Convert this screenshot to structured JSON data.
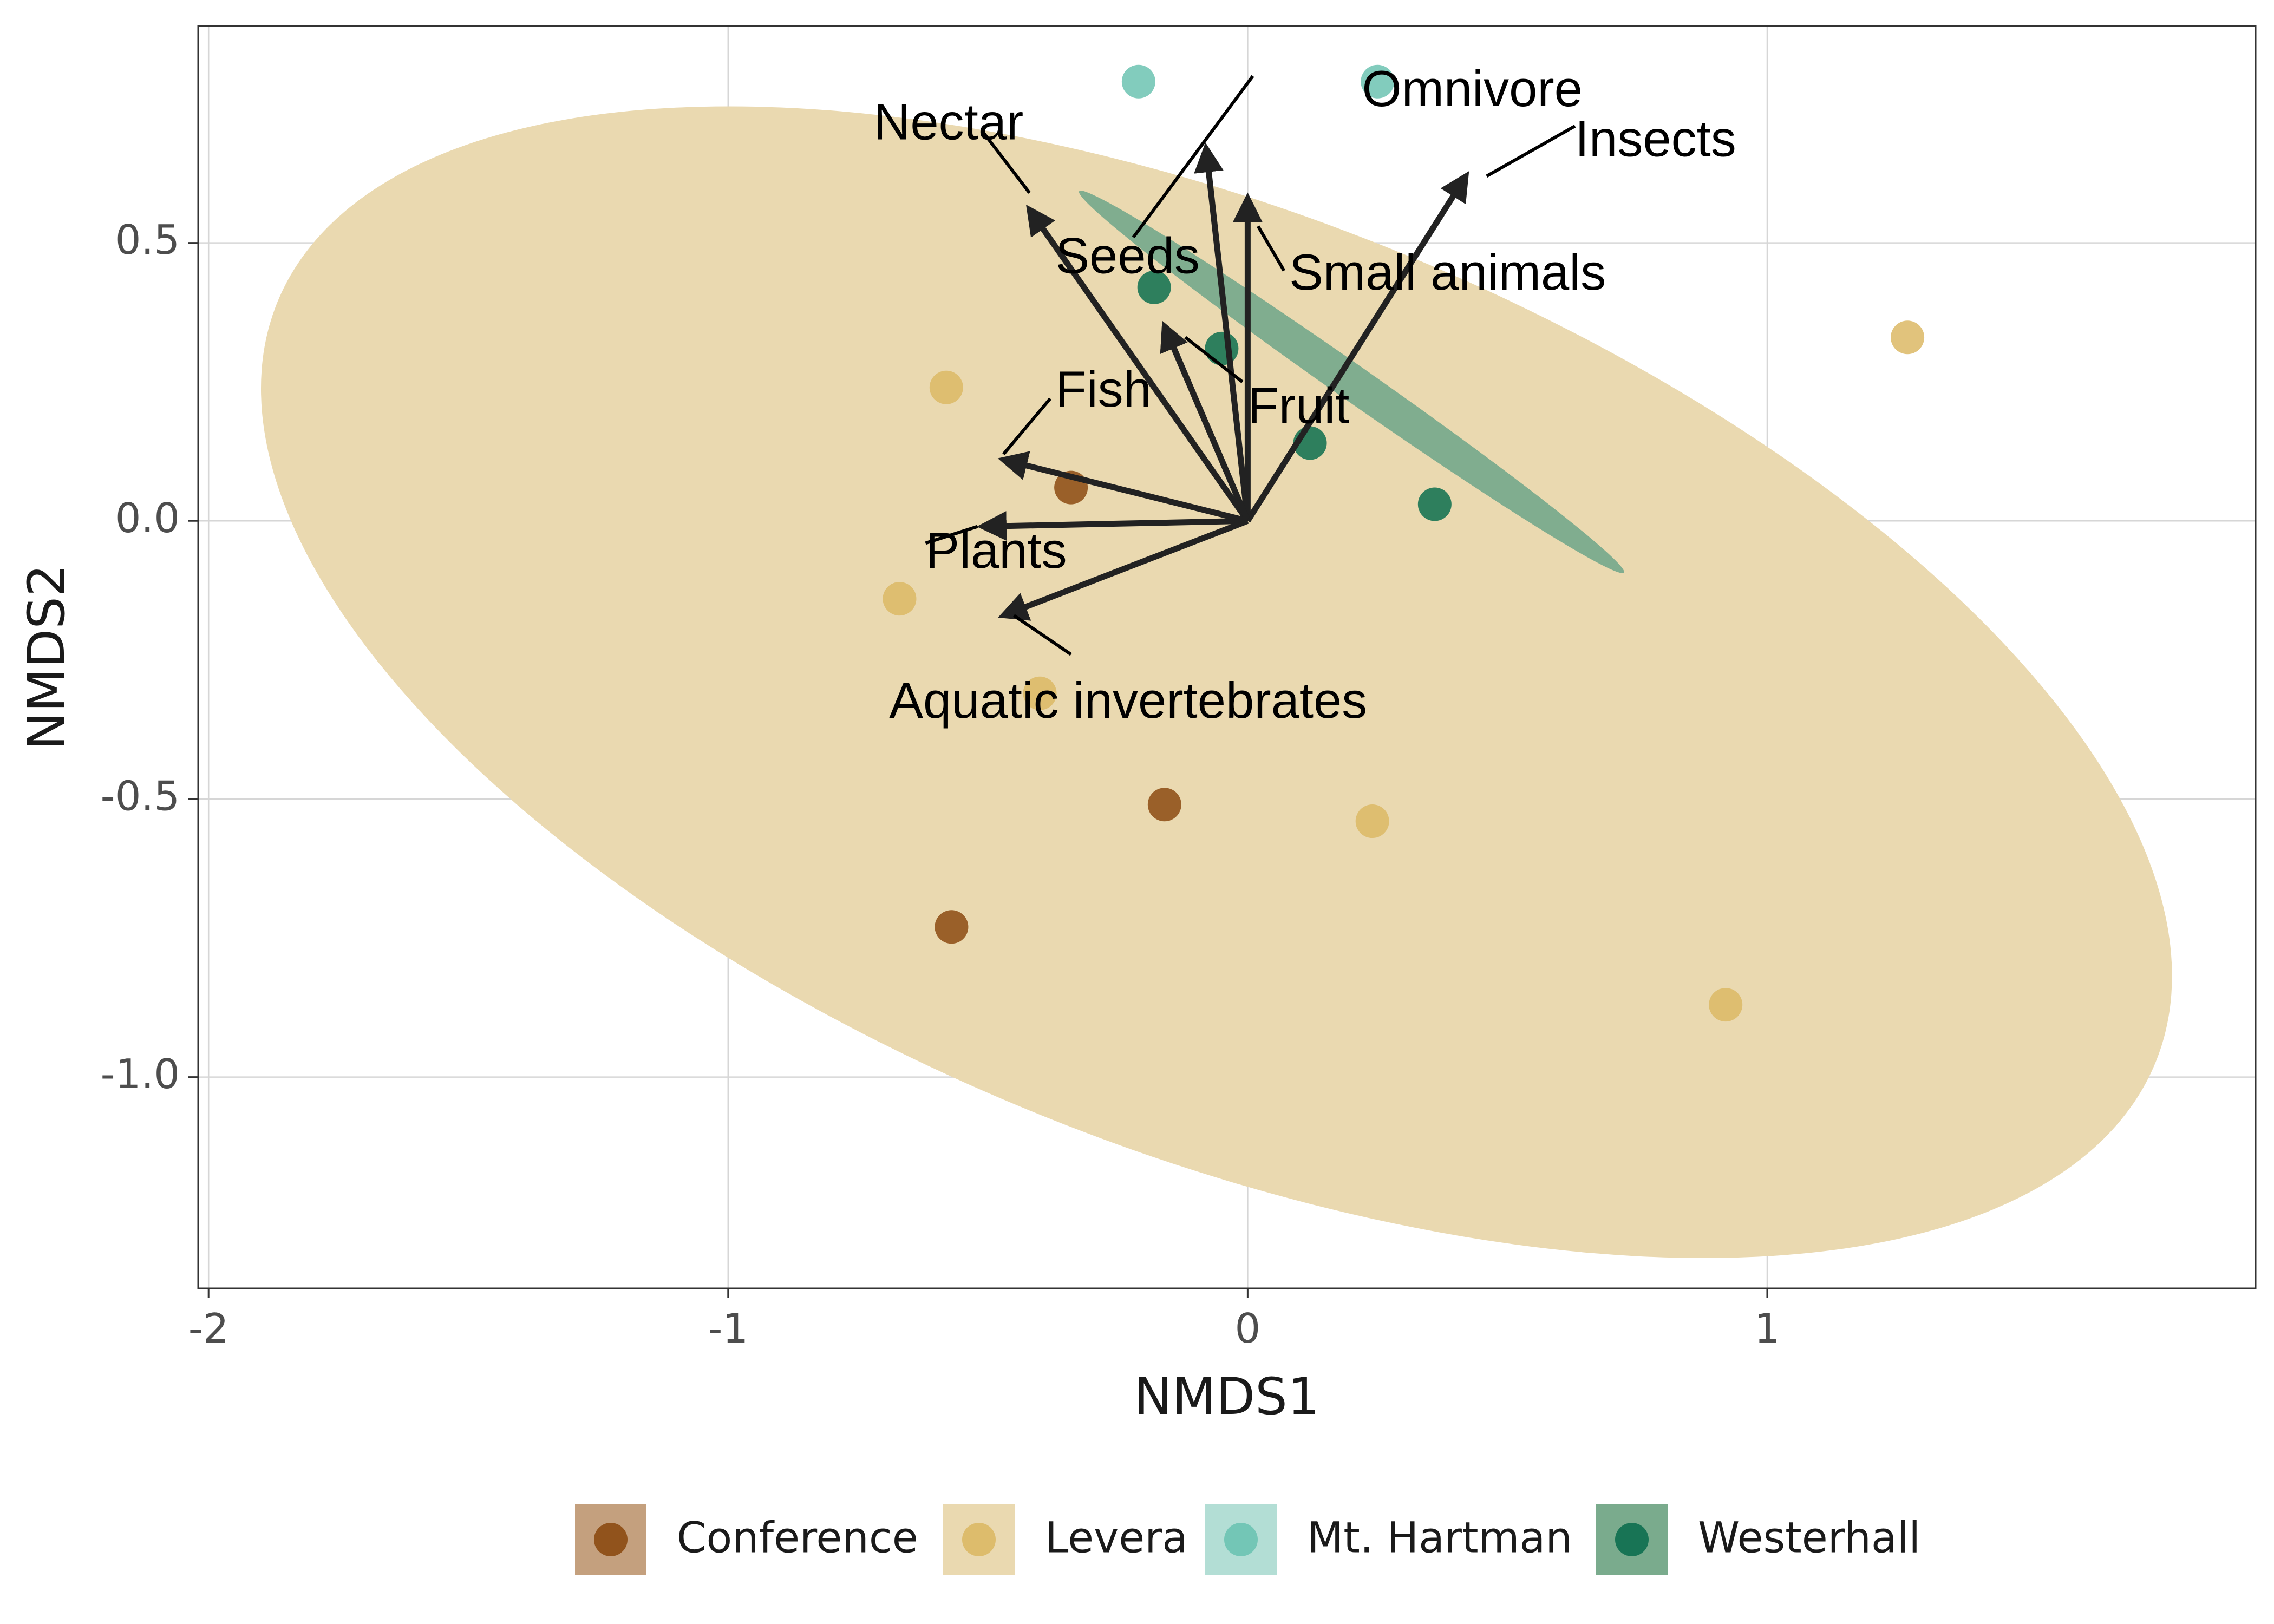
{
  "chart_data": {
    "type": "scatter",
    "xlabel": "NMDS1",
    "ylabel": "NMDS2",
    "xlim": [
      -2.02,
      1.94
    ],
    "ylim": [
      -1.38,
      0.89
    ],
    "x_ticks": [
      -2,
      -1,
      0,
      1
    ],
    "x_tick_labels": [
      "-2",
      "-1",
      "0",
      "1"
    ],
    "y_ticks": [
      0.5,
      0.0,
      -0.5,
      -1.0
    ],
    "y_tick_labels": [
      "0.5",
      "0.0",
      "-0.5",
      "-1.0"
    ],
    "grid": true,
    "legend_position": "bottom",
    "series": [
      {
        "name": "Conference",
        "color": "#8c4a12",
        "ellipse_color": "#c4a07e",
        "points": [
          {
            "x": -0.34,
            "y": 0.06
          },
          {
            "x": -0.16,
            "y": -0.51
          },
          {
            "x": -0.57,
            "y": -0.73
          }
        ]
      },
      {
        "name": "Levera",
        "color": "#dcb865",
        "ellipse_color": "#ead9b0",
        "ellipse": {
          "cx": -0.06,
          "cy": -0.29,
          "rx": 1.95,
          "ry": 0.84,
          "rotate_deg": 22
        },
        "points": [
          {
            "x": -0.58,
            "y": 0.24
          },
          {
            "x": -0.67,
            "y": -0.14
          },
          {
            "x": -0.4,
            "y": -0.31
          },
          {
            "x": 0.24,
            "y": -0.54
          },
          {
            "x": 0.92,
            "y": -0.87
          },
          {
            "x": 1.27,
            "y": 0.33
          }
        ]
      },
      {
        "name": "Mt. Hartman",
        "color": "#6cc3b2",
        "ellipse_color": "#b3ded5",
        "points": [
          {
            "x": -0.21,
            "y": 0.79
          },
          {
            "x": 0.25,
            "y": 0.79
          }
        ]
      },
      {
        "name": "Westerhall",
        "color": "#0d6e4f",
        "ellipse_color": "#7aab8d",
        "ellipse": {
          "cx": 0.2,
          "cy": 0.25,
          "rx": 0.64,
          "ry": 0.032,
          "rotate_deg": 35
        },
        "points": [
          {
            "x": -0.18,
            "y": 0.42
          },
          {
            "x": -0.05,
            "y": 0.31
          },
          {
            "x": 0.12,
            "y": 0.14
          },
          {
            "x": 0.36,
            "y": 0.03
          }
        ]
      }
    ],
    "vectors": [
      {
        "name": "Nectar",
        "x": -0.42,
        "y": 0.56,
        "label_x": -0.72,
        "label_y": 0.71,
        "leader": [
          -0.51,
          0.7,
          -0.42,
          0.59
        ]
      },
      {
        "name": "Omnivore",
        "x": -0.08,
        "y": 0.67,
        "label_x": 0.22,
        "label_y": 0.77,
        "leader": [
          0.01,
          0.8,
          -0.22,
          0.51
        ]
      },
      {
        "name": "Insects",
        "x": 0.42,
        "y": 0.62,
        "label_x": 0.63,
        "label_y": 0.68,
        "leader": [
          0.63,
          0.71,
          0.46,
          0.62
        ]
      },
      {
        "name": "Small animals",
        "x": 0.0,
        "y": 0.58,
        "label_x": 0.08,
        "label_y": 0.44,
        "leader": [
          0.07,
          0.45,
          0.02,
          0.53
        ]
      },
      {
        "name": "Seeds",
        "x": -0.16,
        "y": 0.35,
        "label_x": -0.37,
        "label_y": 0.47,
        "leader": null
      },
      {
        "name": "Fruit",
        "x": -0.16,
        "y": 0.35,
        "label_x": 0.0,
        "label_y": 0.2,
        "leader": [
          -0.01,
          0.25,
          -0.12,
          0.33
        ]
      },
      {
        "name": "Fish",
        "x": -0.47,
        "y": 0.11,
        "label_x": -0.37,
        "label_y": 0.23,
        "leader": [
          -0.38,
          0.22,
          -0.47,
          0.12
        ]
      },
      {
        "name": "Plants",
        "x": -0.51,
        "y": -0.01,
        "label_x": -0.62,
        "label_y": -0.06,
        "leader": [
          -0.62,
          -0.04,
          -0.52,
          -0.01
        ]
      },
      {
        "name": "Aquatic invertebrates",
        "x": -0.47,
        "y": -0.17,
        "label_x": -0.69,
        "label_y": -0.33,
        "leader": [
          -0.34,
          -0.24,
          -0.45,
          -0.17
        ]
      }
    ]
  }
}
